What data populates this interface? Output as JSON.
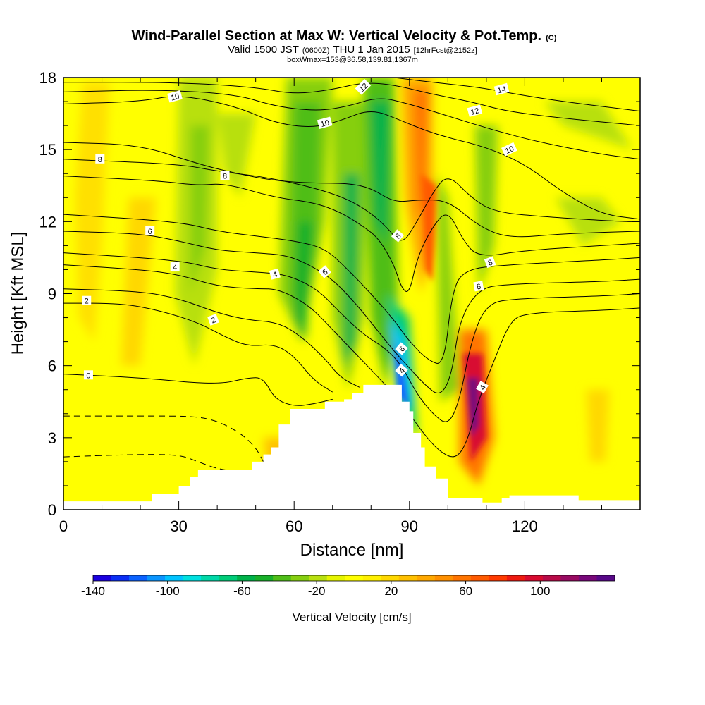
{
  "chart_data": {
    "type": "heatmap",
    "title": "Wind-Parallel Section at Max W: Vertical Velocity & Pot.Temp.",
    "copyright": "(C)",
    "subtitle_parts": [
      "Valid 1500 JST",
      "(0600Z)",
      "THU 1 Jan 2015",
      "[12hrFcst@2152z]"
    ],
    "subtitle2": "boxWmax=153@36.58,139.81,1367m",
    "xlabel": "Distance [nm]",
    "ylabel": "Height [Kft MSL]",
    "xlim": [
      0,
      150
    ],
    "ylim": [
      0,
      18
    ],
    "x_ticks": [
      0,
      30,
      60,
      90,
      120
    ],
    "y_ticks": [
      0,
      3,
      6,
      9,
      12,
      15,
      18
    ],
    "colorbar": {
      "label": "Vertical Velocity [cm/s]",
      "tick_values": [
        -140,
        -100,
        -60,
        -20,
        20,
        60,
        100
      ],
      "levels": [
        -140,
        -130,
        -120,
        -110,
        -100,
        -90,
        -80,
        -70,
        -60,
        -50,
        -40,
        -30,
        -20,
        -10,
        0,
        10,
        20,
        30,
        40,
        50,
        60,
        70,
        80,
        90,
        100,
        110,
        120,
        130,
        140
      ],
      "colors": [
        "#1a00e0",
        "#0a2ef5",
        "#0a62ff",
        "#0a95ff",
        "#00c3ff",
        "#00e0e0",
        "#00d8a8",
        "#00cc78",
        "#00b24a",
        "#18b02a",
        "#4fbe18",
        "#86cf10",
        "#b8e010",
        "#e6f500",
        "#ffff00",
        "#fff000",
        "#ffd800",
        "#ffc000",
        "#ffa800",
        "#ff9000",
        "#ff7400",
        "#ff5a00",
        "#ff3a00",
        "#ee1a10",
        "#d80a30",
        "#b80a48",
        "#980a62",
        "#78087a",
        "#580888"
      ]
    },
    "terrain_top_kft": [
      [
        0,
        0.35
      ],
      [
        22,
        0.35
      ],
      [
        23,
        0.65
      ],
      [
        29,
        0.65
      ],
      [
        30,
        1.0
      ],
      [
        33,
        1.35
      ],
      [
        35,
        1.65
      ],
      [
        48,
        1.65
      ],
      [
        49,
        2.0
      ],
      [
        52,
        2.3
      ],
      [
        54,
        2.6
      ],
      [
        56,
        3.55
      ],
      [
        59,
        4.2
      ],
      [
        67,
        4.2
      ],
      [
        68,
        4.5
      ],
      [
        73,
        4.6
      ],
      [
        75,
        4.85
      ],
      [
        78,
        5.2
      ],
      [
        87,
        5.2
      ],
      [
        88,
        4.5
      ],
      [
        90,
        4.1
      ],
      [
        91,
        3.2
      ],
      [
        93,
        2.6
      ],
      [
        94,
        1.8
      ],
      [
        97,
        1.3
      ],
      [
        100,
        0.5
      ],
      [
        109,
        0.3
      ],
      [
        114,
        0.5
      ],
      [
        116,
        0.6
      ],
      [
        133,
        0.6
      ],
      [
        134,
        0.4
      ],
      [
        150,
        0.4
      ]
    ],
    "wmax_cm_s": 153,
    "potential_temperature_contours": [
      {
        "label": "0",
        "points": [
          [
            0,
            5.65
          ],
          [
            20,
            5.5
          ],
          [
            40,
            5.2
          ],
          [
            48,
            5.5
          ],
          [
            52,
            5.5
          ],
          [
            55,
            4.6
          ],
          [
            60,
            4.3
          ],
          [
            65,
            4.4
          ],
          [
            70,
            4.6
          ]
        ]
      },
      {
        "label": "2",
        "points": [
          [
            0,
            8.6
          ],
          [
            15,
            8.6
          ],
          [
            25,
            8.3
          ],
          [
            35,
            7.8
          ],
          [
            42,
            7.2
          ],
          [
            48,
            6.8
          ],
          [
            55,
            6.9
          ],
          [
            60,
            6.4
          ],
          [
            65,
            5.4
          ],
          [
            70,
            4.9
          ]
        ]
      },
      {
        "label": "",
        "points": [
          [
            0,
            9.2
          ],
          [
            20,
            9.1
          ],
          [
            30,
            8.8
          ],
          [
            40,
            8.2
          ],
          [
            48,
            7.9
          ],
          [
            56,
            7.8
          ],
          [
            62,
            7.2
          ],
          [
            68,
            6.3
          ],
          [
            72,
            5.5
          ],
          [
            77,
            5.1
          ]
        ]
      },
      {
        "label": "4",
        "points": [
          [
            0,
            10.2
          ],
          [
            20,
            10.0
          ],
          [
            30,
            9.8
          ],
          [
            40,
            9.3
          ],
          [
            50,
            9.2
          ],
          [
            56,
            9.2
          ],
          [
            64,
            8.5
          ],
          [
            70,
            7.5
          ],
          [
            76,
            6.5
          ],
          [
            82,
            5.5
          ],
          [
            86,
            4.8
          ],
          [
            90,
            4.0
          ],
          [
            94,
            3.1
          ],
          [
            98,
            2.4
          ],
          [
            102,
            2.1
          ],
          [
            105,
            2.8
          ],
          [
            108,
            4.6
          ],
          [
            112,
            6.2
          ],
          [
            116,
            7.8
          ],
          [
            120,
            8.2
          ],
          [
            140,
            8.3
          ],
          [
            150,
            8.4
          ]
        ]
      },
      {
        "label": "",
        "points": [
          [
            0,
            10.7
          ],
          [
            30,
            10.4
          ],
          [
            40,
            10.0
          ],
          [
            50,
            9.9
          ],
          [
            58,
            9.8
          ],
          [
            66,
            9.2
          ],
          [
            72,
            8.2
          ],
          [
            78,
            7.3
          ],
          [
            84,
            6.7
          ],
          [
            88,
            6.0
          ],
          [
            92,
            4.8
          ],
          [
            96,
            4.0
          ],
          [
            100,
            3.5
          ],
          [
            103,
            4.5
          ],
          [
            106,
            7.0
          ],
          [
            110,
            8.6
          ],
          [
            118,
            8.8
          ],
          [
            140,
            8.9
          ],
          [
            150,
            9.0
          ]
        ]
      },
      {
        "label": "6",
        "points": [
          [
            0,
            11.6
          ],
          [
            20,
            11.5
          ],
          [
            30,
            11.2
          ],
          [
            40,
            10.8
          ],
          [
            50,
            10.7
          ],
          [
            58,
            10.6
          ],
          [
            64,
            10.2
          ],
          [
            70,
            9.6
          ],
          [
            76,
            8.6
          ],
          [
            82,
            7.4
          ],
          [
            86,
            6.6
          ],
          [
            90,
            5.9
          ],
          [
            94,
            5.2
          ],
          [
            98,
            4.7
          ],
          [
            101,
            5.6
          ],
          [
            103,
            7.9
          ],
          [
            108,
            9.2
          ],
          [
            115,
            9.4
          ],
          [
            140,
            9.5
          ],
          [
            150,
            9.6
          ]
        ]
      },
      {
        "label": "",
        "points": [
          [
            0,
            12.3
          ],
          [
            30,
            12.0
          ],
          [
            40,
            11.6
          ],
          [
            50,
            11.4
          ],
          [
            60,
            11.2
          ],
          [
            68,
            10.9
          ],
          [
            74,
            10.0
          ],
          [
            80,
            9.0
          ],
          [
            86,
            7.9
          ],
          [
            90,
            7.0
          ],
          [
            95,
            6.2
          ],
          [
            99,
            6.0
          ],
          [
            101,
            9.0
          ],
          [
            104,
            10.0
          ],
          [
            115,
            10.2
          ],
          [
            140,
            10.4
          ],
          [
            150,
            10.5
          ]
        ]
      },
      {
        "label": "8",
        "points": [
          [
            0,
            13.9
          ],
          [
            25,
            13.7
          ],
          [
            35,
            13.5
          ],
          [
            42,
            13.6
          ],
          [
            55,
            13.0
          ],
          [
            65,
            12.8
          ],
          [
            72,
            12.4
          ],
          [
            78,
            11.8
          ],
          [
            82,
            11.3
          ],
          [
            86,
            10.2
          ],
          [
            88,
            9.2
          ],
          [
            90,
            9.0
          ],
          [
            92,
            10.5
          ],
          [
            96,
            11.8
          ],
          [
            100,
            12.5
          ],
          [
            104,
            11.2
          ],
          [
            108,
            10.5
          ],
          [
            120,
            10.8
          ],
          [
            140,
            11.0
          ],
          [
            150,
            11.1
          ]
        ]
      },
      {
        "label": "",
        "points": [
          [
            0,
            14.6
          ],
          [
            30,
            14.4
          ],
          [
            40,
            14.1
          ],
          [
            55,
            13.8
          ],
          [
            70,
            13.2
          ],
          [
            78,
            12.6
          ],
          [
            84,
            11.8
          ],
          [
            88,
            11.0
          ],
          [
            92,
            12.0
          ],
          [
            96,
            13.2
          ],
          [
            100,
            14.0
          ],
          [
            106,
            13.0
          ],
          [
            112,
            12.4
          ],
          [
            125,
            12.2
          ],
          [
            145,
            12.0
          ],
          [
            150,
            12.0
          ]
        ]
      },
      {
        "label": "8",
        "points": [
          [
            0,
            15.3
          ],
          [
            20,
            15.2
          ],
          [
            35,
            14.4
          ],
          [
            45,
            14.0
          ],
          [
            55,
            13.7
          ],
          [
            65,
            13.6
          ],
          [
            74,
            13.6
          ],
          [
            80,
            13.4
          ],
          [
            86,
            12.8
          ],
          [
            92,
            12.9
          ],
          [
            100,
            12.9
          ],
          [
            108,
            11.8
          ],
          [
            116,
            11.3
          ],
          [
            130,
            11.5
          ],
          [
            150,
            11.6
          ]
        ]
      },
      {
        "label": "10",
        "points": [
          [
            0,
            16.9
          ],
          [
            20,
            17.0
          ],
          [
            30,
            17.3
          ],
          [
            45,
            16.8
          ],
          [
            55,
            16.1
          ],
          [
            65,
            15.9
          ],
          [
            72,
            16.2
          ],
          [
            80,
            16.7
          ],
          [
            88,
            16.2
          ],
          [
            94,
            15.8
          ],
          [
            100,
            15.5
          ],
          [
            110,
            15.1
          ],
          [
            120,
            14.4
          ],
          [
            130,
            13.2
          ],
          [
            140,
            12.3
          ],
          [
            150,
            12.1
          ]
        ]
      },
      {
        "label": "",
        "points": [
          [
            0,
            17.4
          ],
          [
            25,
            17.5
          ],
          [
            45,
            17.3
          ],
          [
            55,
            16.8
          ],
          [
            66,
            16.6
          ],
          [
            74,
            16.8
          ],
          [
            82,
            17.2
          ],
          [
            90,
            16.9
          ],
          [
            100,
            16.4
          ],
          [
            112,
            15.8
          ],
          [
            124,
            15.3
          ],
          [
            140,
            14.8
          ],
          [
            150,
            14.6
          ]
        ]
      },
      {
        "label": "12",
        "points": [
          [
            0,
            17.8
          ],
          [
            30,
            17.8
          ],
          [
            50,
            17.6
          ],
          [
            60,
            17.3
          ],
          [
            70,
            17.5
          ],
          [
            78,
            17.8
          ],
          [
            86,
            17.7
          ],
          [
            96,
            17.3
          ],
          [
            106,
            17.0
          ],
          [
            115,
            16.6
          ],
          [
            130,
            16.3
          ],
          [
            150,
            16.0
          ]
        ]
      },
      {
        "label": "14",
        "points": [
          [
            86,
            18.0
          ],
          [
            96,
            17.8
          ],
          [
            108,
            17.6
          ],
          [
            118,
            17.3
          ],
          [
            130,
            17.0
          ],
          [
            150,
            16.6
          ]
        ]
      }
    ],
    "dashed_contours": [
      {
        "label": "",
        "points": [
          [
            0,
            3.9
          ],
          [
            20,
            3.9
          ],
          [
            34,
            3.9
          ],
          [
            40,
            3.7
          ],
          [
            46,
            3.2
          ],
          [
            50,
            2.6
          ],
          [
            52,
            2.0
          ]
        ]
      },
      {
        "label": "",
        "points": [
          [
            0,
            2.2
          ],
          [
            18,
            2.3
          ],
          [
            30,
            2.3
          ],
          [
            35,
            2.0
          ],
          [
            40,
            1.7
          ],
          [
            45,
            1.6
          ]
        ]
      }
    ],
    "contour_labels": [
      {
        "text": "10",
        "x": 29,
        "y": 17.2,
        "rot": -15
      },
      {
        "text": "8",
        "x": 9.5,
        "y": 14.6,
        "rot": 0
      },
      {
        "text": "8",
        "x": 42,
        "y": 13.9,
        "rot": 0
      },
      {
        "text": "6",
        "x": 22.5,
        "y": 11.6,
        "rot": 0
      },
      {
        "text": "4",
        "x": 29,
        "y": 10.1,
        "rot": 0
      },
      {
        "text": "2",
        "x": 6,
        "y": 8.7,
        "rot": 0
      },
      {
        "text": "2",
        "x": 39,
        "y": 7.9,
        "rot": -20
      },
      {
        "text": "0",
        "x": 6.5,
        "y": 5.6,
        "rot": 0
      },
      {
        "text": "4",
        "x": 55,
        "y": 9.8,
        "rot": -15
      },
      {
        "text": "6",
        "x": 68,
        "y": 9.9,
        "rot": -40
      },
      {
        "text": "12",
        "x": 78,
        "y": 17.6,
        "rot": -45
      },
      {
        "text": "10",
        "x": 68,
        "y": 16.1,
        "rot": -15
      },
      {
        "text": "8",
        "x": 87,
        "y": 11.4,
        "rot": -50
      },
      {
        "text": "6",
        "x": 88,
        "y": 6.7,
        "rot": -50
      },
      {
        "text": "4",
        "x": 88,
        "y": 5.8,
        "rot": -50
      },
      {
        "text": "4",
        "x": 109,
        "y": 5.1,
        "rot": -60
      },
      {
        "text": "14",
        "x": 114,
        "y": 17.5,
        "rot": -15
      },
      {
        "text": "12",
        "x": 107,
        "y": 16.6,
        "rot": -15
      },
      {
        "text": "10",
        "x": 116,
        "y": 15.0,
        "rot": -25
      },
      {
        "text": "8",
        "x": 111,
        "y": 10.3,
        "rot": -20
      },
      {
        "text": "6",
        "x": 108,
        "y": 9.3,
        "rot": -10
      }
    ]
  }
}
